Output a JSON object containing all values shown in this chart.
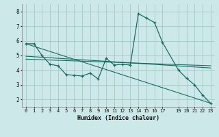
{
  "xlabel": "Humidex (Indice chaleur)",
  "bg_color": "#cce8e8",
  "grid_color": "#aacccc",
  "line_color": "#1a6a60",
  "ylim": [
    1.5,
    8.5
  ],
  "xlim": [
    -0.5,
    23.5
  ],
  "yticks": [
    2,
    3,
    4,
    5,
    6,
    7,
    8
  ],
  "xticks": [
    0,
    1,
    2,
    3,
    4,
    5,
    6,
    7,
    8,
    9,
    10,
    11,
    12,
    13,
    14,
    15,
    16,
    17,
    19,
    20,
    21,
    22,
    23
  ],
  "series": [
    {
      "x": [
        0,
        1,
        2,
        3,
        4,
        5,
        6,
        7,
        8,
        9,
        10,
        11,
        12,
        13,
        14,
        15,
        16,
        17,
        19,
        20,
        21,
        22,
        23
      ],
      "y": [
        5.8,
        5.8,
        5.0,
        4.4,
        4.3,
        3.7,
        3.65,
        3.6,
        3.8,
        3.4,
        4.8,
        4.35,
        4.4,
        4.35,
        7.85,
        7.55,
        7.25,
        5.9,
        4.0,
        3.45,
        3.0,
        2.3,
        1.75
      ],
      "marker": true
    },
    {
      "x": [
        0,
        23
      ],
      "y": [
        5.8,
        1.75
      ],
      "marker": false
    },
    {
      "x": [
        0,
        23
      ],
      "y": [
        4.95,
        4.15
      ],
      "marker": false
    },
    {
      "x": [
        0,
        23
      ],
      "y": [
        4.75,
        4.3
      ],
      "marker": false
    }
  ]
}
